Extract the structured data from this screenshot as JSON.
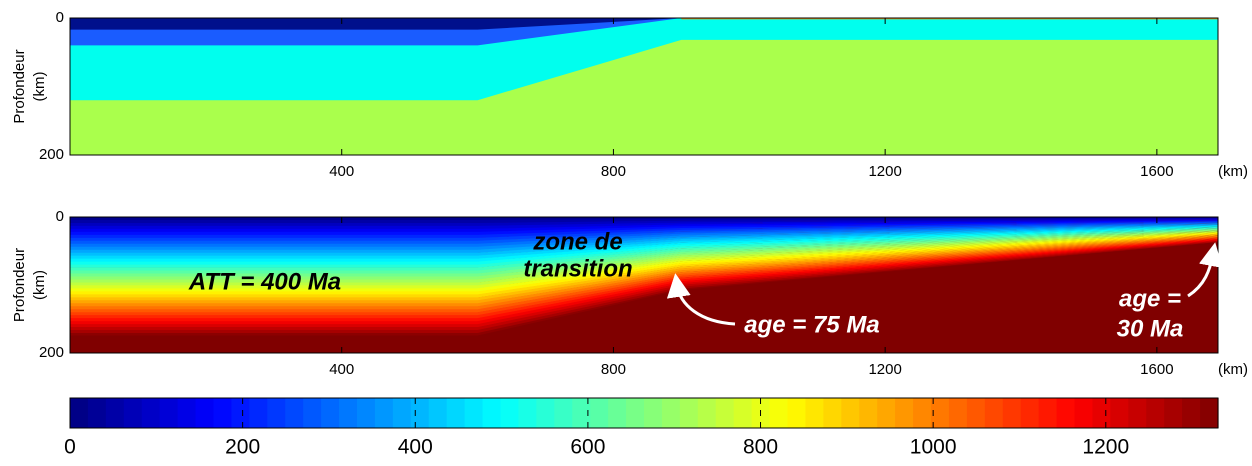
{
  "chart_data": [
    {
      "type": "layers",
      "ylabel": "Profondeur",
      "ylabel_unit": "(km)",
      "xunit": "(km)",
      "xlim": [
        0,
        1690
      ],
      "ylim": [
        0,
        200
      ],
      "xticks": [
        400,
        800,
        1200,
        1600
      ],
      "yticks": [
        0,
        200
      ],
      "background": "#aaff4c",
      "layers": [
        {
          "color": "#00ffee",
          "x": [
            0,
            600,
            900,
            1690
          ],
          "depth": [
            120,
            120,
            32,
            32
          ]
        },
        {
          "color": "#1a5cff",
          "x": [
            0,
            600,
            900
          ],
          "depth": [
            40,
            40,
            0
          ]
        },
        {
          "color": "#00108c",
          "x": [
            0,
            600,
            900
          ],
          "depth": [
            17,
            17,
            0
          ]
        },
        {
          "color": "#e8941a",
          "x": [
            900,
            1690
          ],
          "depth": [
            2,
            2
          ]
        }
      ]
    },
    {
      "type": "thermal",
      "ylabel": "Profondeur",
      "ylabel_unit": "(km)",
      "xunit": "(km)",
      "xlim": [
        0,
        1690
      ],
      "ylim": [
        0,
        200
      ],
      "xticks": [
        400,
        800,
        1200,
        1600
      ],
      "yticks": [
        0,
        200
      ],
      "colormap": "jet",
      "bands": 40,
      "x": [
        0,
        600,
        900,
        1690
      ],
      "base_depth": [
        175,
        175,
        108,
        38
      ],
      "annotations": [
        "ATT = 400 Ma",
        "zone de",
        "transition",
        "age = 75 Ma",
        "age =",
        "30 Ma"
      ]
    },
    {
      "type": "colorbar",
      "colormap": "jet",
      "clim": [
        0,
        1330
      ],
      "steps": 64,
      "xticks": [
        0,
        200,
        400,
        600,
        800,
        1000,
        1200
      ]
    }
  ]
}
